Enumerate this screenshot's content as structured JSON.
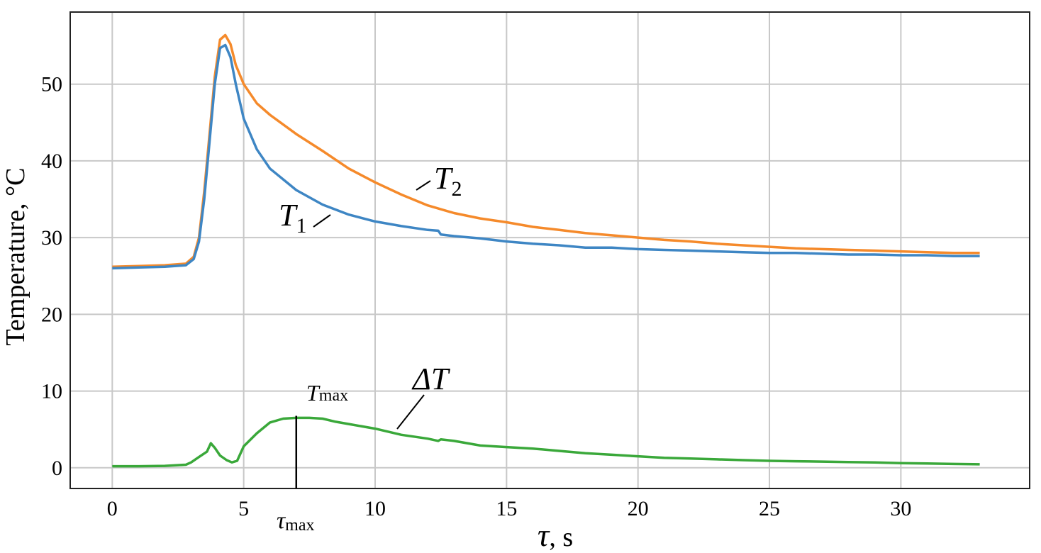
{
  "chart_data": {
    "type": "line",
    "title": "",
    "xlabel_symbol": "τ",
    "xlabel_unit": ", s",
    "ylabel": "Temperature, °C",
    "xlim": [
      -1.6,
      34.9
    ],
    "ylim": [
      -2.7,
      59.4
    ],
    "xticks": [
      0,
      5,
      10,
      15,
      20,
      25,
      30
    ],
    "yticks": [
      0,
      10,
      20,
      30,
      40,
      50
    ],
    "grid": true,
    "legend": "none",
    "series": [
      {
        "name": "T2",
        "label_main": "T",
        "label_sub": "2",
        "color": "#f58a2b",
        "points": [
          [
            0,
            26.2
          ],
          [
            1,
            26.3
          ],
          [
            2,
            26.4
          ],
          [
            2.8,
            26.6
          ],
          [
            3.1,
            27.5
          ],
          [
            3.3,
            30
          ],
          [
            3.5,
            36
          ],
          [
            3.7,
            43.5
          ],
          [
            3.9,
            51
          ],
          [
            4.1,
            55.8
          ],
          [
            4.3,
            56.4
          ],
          [
            4.5,
            55.2
          ],
          [
            4.7,
            52.5
          ],
          [
            5,
            50
          ],
          [
            5.5,
            47.5
          ],
          [
            6,
            46
          ],
          [
            7,
            43.5
          ],
          [
            8,
            41.3
          ],
          [
            9,
            39
          ],
          [
            10,
            37.2
          ],
          [
            11,
            35.6
          ],
          [
            12,
            34.2
          ],
          [
            13,
            33.2
          ],
          [
            14,
            32.5
          ],
          [
            15,
            32
          ],
          [
            16,
            31.4
          ],
          [
            17,
            31
          ],
          [
            18,
            30.6
          ],
          [
            19,
            30.3
          ],
          [
            20,
            30
          ],
          [
            21,
            29.7
          ],
          [
            22,
            29.5
          ],
          [
            23,
            29.2
          ],
          [
            24,
            29
          ],
          [
            25,
            28.8
          ],
          [
            26,
            28.6
          ],
          [
            27,
            28.5
          ],
          [
            28,
            28.4
          ],
          [
            29,
            28.3
          ],
          [
            30,
            28.2
          ],
          [
            31,
            28.1
          ],
          [
            32,
            28
          ],
          [
            33,
            28
          ]
        ]
      },
      {
        "name": "T1",
        "label_main": "T",
        "label_sub": "1",
        "color": "#3e86c4",
        "points": [
          [
            0,
            26
          ],
          [
            1,
            26.1
          ],
          [
            2,
            26.2
          ],
          [
            2.8,
            26.4
          ],
          [
            3.1,
            27.2
          ],
          [
            3.3,
            29.5
          ],
          [
            3.5,
            35
          ],
          [
            3.7,
            42.5
          ],
          [
            3.9,
            50
          ],
          [
            4.1,
            54.7
          ],
          [
            4.3,
            55.1
          ],
          [
            4.5,
            53.5
          ],
          [
            4.7,
            50
          ],
          [
            5,
            45.5
          ],
          [
            5.5,
            41.5
          ],
          [
            6,
            39
          ],
          [
            7,
            36.2
          ],
          [
            8,
            34.3
          ],
          [
            9,
            33
          ],
          [
            10,
            32.1
          ],
          [
            11,
            31.5
          ],
          [
            12,
            31
          ],
          [
            12.4,
            30.9
          ],
          [
            12.5,
            30.4
          ],
          [
            13,
            30.2
          ],
          [
            14,
            29.9
          ],
          [
            15,
            29.5
          ],
          [
            16,
            29.2
          ],
          [
            17,
            29
          ],
          [
            18,
            28.7
          ],
          [
            19,
            28.7
          ],
          [
            20,
            28.5
          ],
          [
            21,
            28.4
          ],
          [
            22,
            28.3
          ],
          [
            23,
            28.2
          ],
          [
            24,
            28.1
          ],
          [
            25,
            28
          ],
          [
            26,
            28
          ],
          [
            27,
            27.9
          ],
          [
            28,
            27.8
          ],
          [
            29,
            27.8
          ],
          [
            30,
            27.7
          ],
          [
            31,
            27.7
          ],
          [
            32,
            27.6
          ],
          [
            33,
            27.6
          ]
        ]
      },
      {
        "name": "ΔT",
        "label_main": "ΔT",
        "label_sub": "",
        "color": "#3aa83a",
        "points": [
          [
            0,
            0.2
          ],
          [
            1,
            0.2
          ],
          [
            2,
            0.25
          ],
          [
            2.8,
            0.4
          ],
          [
            3,
            0.7
          ],
          [
            3.3,
            1.4
          ],
          [
            3.6,
            2.1
          ],
          [
            3.75,
            3.2
          ],
          [
            3.9,
            2.6
          ],
          [
            4.1,
            1.6
          ],
          [
            4.35,
            1.0
          ],
          [
            4.55,
            0.7
          ],
          [
            4.75,
            0.9
          ],
          [
            5,
            2.8
          ],
          [
            5.5,
            4.5
          ],
          [
            6,
            5.9
          ],
          [
            6.5,
            6.4
          ],
          [
            7,
            6.5
          ],
          [
            7.5,
            6.5
          ],
          [
            8,
            6.4
          ],
          [
            8.5,
            6.0
          ],
          [
            9,
            5.7
          ],
          [
            10,
            5.1
          ],
          [
            11,
            4.3
          ],
          [
            12,
            3.8
          ],
          [
            12.4,
            3.5
          ],
          [
            12.5,
            3.7
          ],
          [
            13,
            3.5
          ],
          [
            14,
            2.9
          ],
          [
            15,
            2.7
          ],
          [
            16,
            2.5
          ],
          [
            17,
            2.2
          ],
          [
            18,
            1.9
          ],
          [
            19,
            1.7
          ],
          [
            20,
            1.5
          ],
          [
            21,
            1.3
          ],
          [
            22,
            1.2
          ],
          [
            23,
            1.1
          ],
          [
            24,
            1.0
          ],
          [
            25,
            0.9
          ],
          [
            26,
            0.85
          ],
          [
            27,
            0.8
          ],
          [
            28,
            0.75
          ],
          [
            29,
            0.7
          ],
          [
            30,
            0.6
          ],
          [
            31,
            0.55
          ],
          [
            32,
            0.5
          ],
          [
            33,
            0.45
          ]
        ]
      }
    ],
    "annotations": {
      "tmax_label_main": "T",
      "tmax_label_sub": "max",
      "taumax_label_main": "τ",
      "taumax_label_sub": "max",
      "tau_max": 7.0,
      "tmax_value": 6.5
    }
  }
}
